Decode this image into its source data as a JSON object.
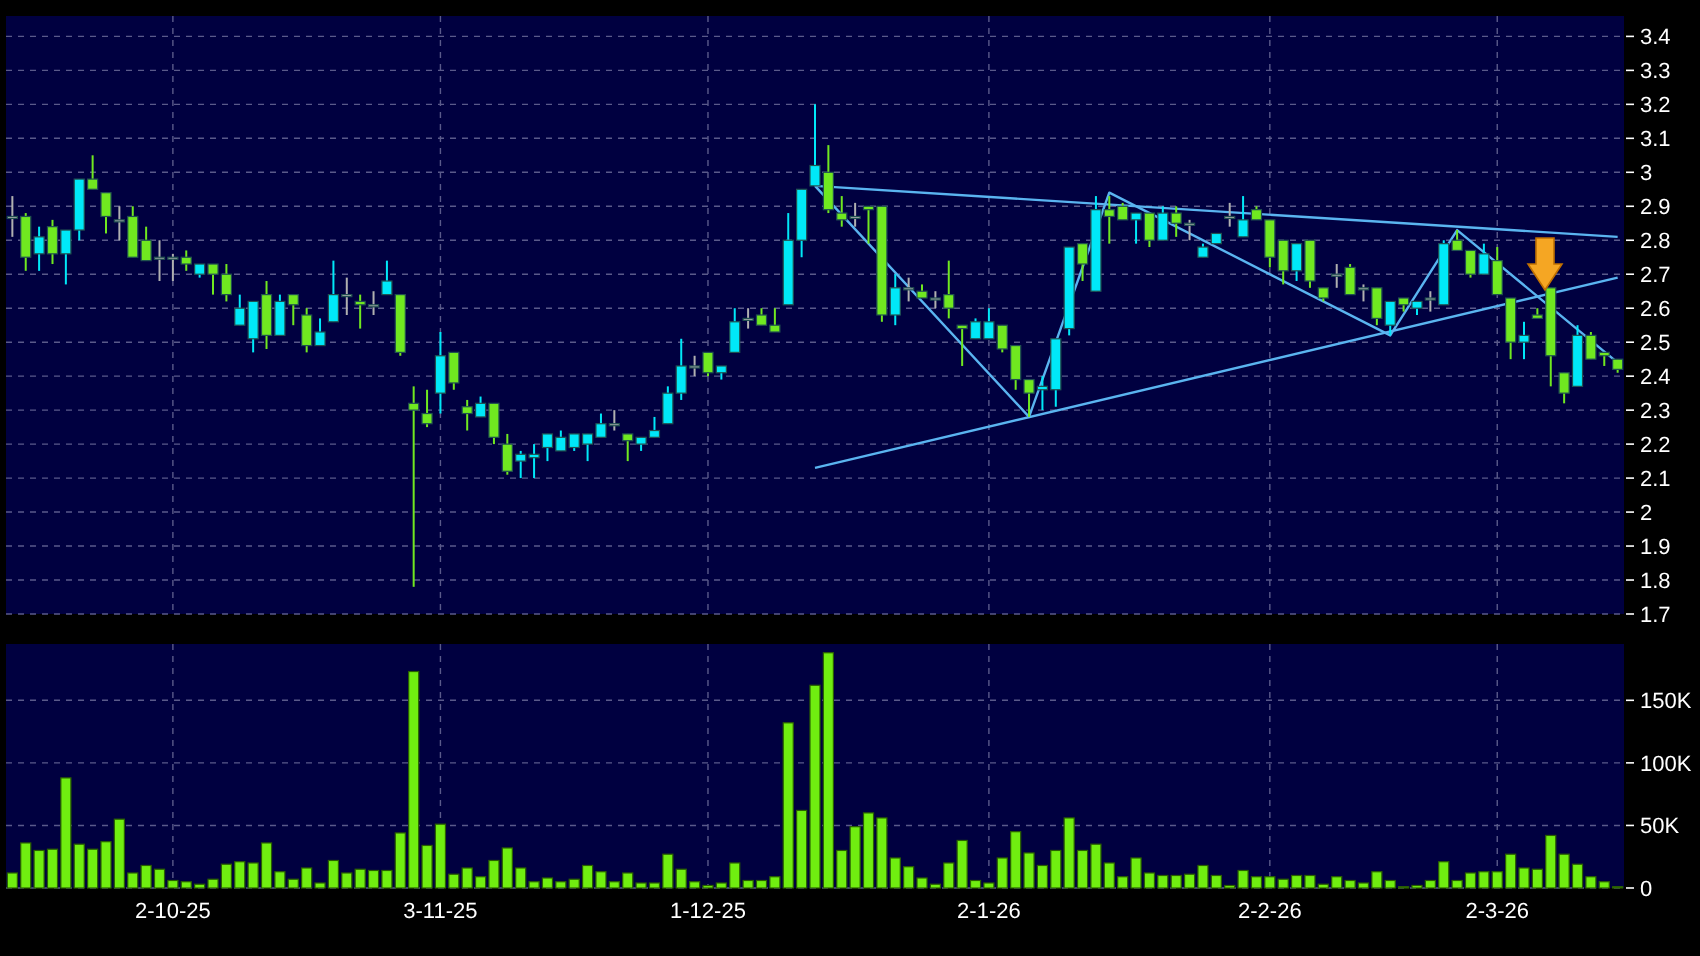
{
  "chart_data": [
    {
      "type": "candlestick",
      "categories": [
        null,
        null,
        null,
        null,
        null,
        null,
        null,
        null,
        null,
        null,
        null,
        null,
        null,
        null,
        null,
        null,
        null,
        null,
        null,
        null,
        null,
        null,
        null,
        null,
        null,
        null,
        null,
        null,
        null,
        null,
        null,
        null,
        null,
        null,
        null,
        null,
        null,
        null,
        null,
        null,
        null,
        null,
        null,
        null,
        null,
        null,
        null,
        null,
        null,
        null,
        null,
        null,
        null,
        null,
        null,
        null,
        null,
        null,
        null,
        null,
        null,
        null,
        null,
        null,
        null,
        null,
        null,
        null,
        null,
        null,
        null,
        null,
        null,
        null,
        null,
        null,
        null,
        null,
        null,
        null,
        null,
        null,
        null,
        null,
        null,
        null,
        null,
        null,
        null,
        null,
        null,
        null,
        null,
        null,
        null,
        null,
        null,
        null,
        null,
        null,
        null,
        null,
        null,
        null,
        null,
        null,
        null,
        null,
        null,
        null,
        null,
        null,
        null,
        null,
        null,
        null,
        null,
        null,
        null,
        null,
        null
      ],
      "ohlc": [
        [
          2.87,
          2.93,
          2.81,
          2.87
        ],
        [
          2.87,
          2.88,
          2.71,
          2.75
        ],
        [
          2.76,
          2.84,
          2.71,
          2.81
        ],
        [
          2.84,
          2.86,
          2.73,
          2.76
        ],
        [
          2.76,
          2.83,
          2.67,
          2.83
        ],
        [
          2.83,
          2.98,
          2.8,
          2.98
        ],
        [
          2.98,
          3.05,
          2.95,
          2.95
        ],
        [
          2.94,
          2.94,
          2.82,
          2.87
        ],
        [
          2.86,
          2.9,
          2.8,
          2.86
        ],
        [
          2.87,
          2.9,
          2.75,
          2.75
        ],
        [
          2.8,
          2.84,
          2.74,
          2.74
        ],
        [
          2.75,
          2.8,
          2.68,
          2.75
        ],
        [
          2.75,
          2.76,
          2.68,
          2.75
        ],
        [
          2.75,
          2.77,
          2.71,
          2.73
        ],
        [
          2.7,
          2.73,
          2.69,
          2.73
        ],
        [
          2.73,
          2.73,
          2.64,
          2.7
        ],
        [
          2.7,
          2.73,
          2.62,
          2.64
        ],
        [
          2.55,
          2.64,
          2.55,
          2.6
        ],
        [
          2.51,
          2.62,
          2.47,
          2.62
        ],
        [
          2.64,
          2.68,
          2.48,
          2.52
        ],
        [
          2.52,
          2.64,
          2.52,
          2.62
        ],
        [
          2.64,
          2.64,
          2.55,
          2.61
        ],
        [
          2.58,
          2.6,
          2.47,
          2.49
        ],
        [
          2.49,
          2.57,
          2.49,
          2.53
        ],
        [
          2.56,
          2.74,
          2.56,
          2.64
        ],
        [
          2.64,
          2.69,
          2.58,
          2.64
        ],
        [
          2.62,
          2.64,
          2.54,
          2.61
        ],
        [
          2.61,
          2.65,
          2.58,
          2.61
        ],
        [
          2.64,
          2.74,
          2.64,
          2.68
        ],
        [
          2.64,
          2.64,
          2.46,
          2.47
        ],
        [
          2.32,
          2.37,
          1.78,
          2.3
        ],
        [
          2.29,
          2.36,
          2.25,
          2.26
        ],
        [
          2.35,
          2.53,
          2.29,
          2.46
        ],
        [
          2.47,
          2.47,
          2.36,
          2.38
        ],
        [
          2.31,
          2.33,
          2.24,
          2.29
        ],
        [
          2.28,
          2.34,
          2.28,
          2.32
        ],
        [
          2.32,
          2.32,
          2.2,
          2.22
        ],
        [
          2.2,
          2.23,
          2.11,
          2.12
        ],
        [
          2.15,
          2.18,
          2.1,
          2.17
        ],
        [
          2.16,
          2.2,
          2.1,
          2.17
        ],
        [
          2.19,
          2.23,
          2.15,
          2.23
        ],
        [
          2.18,
          2.24,
          2.18,
          2.22
        ],
        [
          2.19,
          2.23,
          2.18,
          2.23
        ],
        [
          2.2,
          2.23,
          2.15,
          2.23
        ],
        [
          2.22,
          2.29,
          2.22,
          2.26
        ],
        [
          2.26,
          2.3,
          2.24,
          2.26
        ],
        [
          2.23,
          2.23,
          2.15,
          2.21
        ],
        [
          2.2,
          2.22,
          2.18,
          2.22
        ],
        [
          2.22,
          2.28,
          2.22,
          2.24
        ],
        [
          2.26,
          2.37,
          2.26,
          2.35
        ],
        [
          2.35,
          2.51,
          2.33,
          2.43
        ],
        [
          2.43,
          2.46,
          2.4,
          2.43
        ],
        [
          2.47,
          2.47,
          2.4,
          2.41
        ],
        [
          2.41,
          2.43,
          2.39,
          2.43
        ],
        [
          2.47,
          2.6,
          2.47,
          2.56
        ],
        [
          2.57,
          2.6,
          2.54,
          2.57
        ],
        [
          2.58,
          2.6,
          2.55,
          2.55
        ],
        [
          2.55,
          2.6,
          2.53,
          2.53
        ],
        [
          2.61,
          2.88,
          2.61,
          2.8
        ],
        [
          2.8,
          2.95,
          2.75,
          2.95
        ],
        [
          2.96,
          3.2,
          2.96,
          3.02
        ],
        [
          3,
          3.08,
          2.88,
          2.89
        ],
        [
          2.88,
          2.93,
          2.84,
          2.86
        ],
        [
          2.87,
          2.91,
          2.84,
          2.87
        ],
        [
          2.9,
          2.9,
          2.79,
          2.89
        ],
        [
          2.9,
          2.9,
          2.56,
          2.58
        ],
        [
          2.58,
          2.7,
          2.55,
          2.66
        ],
        [
          2.66,
          2.69,
          2.62,
          2.66
        ],
        [
          2.65,
          2.67,
          2.63,
          2.63
        ],
        [
          2.63,
          2.65,
          2.6,
          2.63
        ],
        [
          2.64,
          2.74,
          2.57,
          2.6
        ],
        [
          2.55,
          2.55,
          2.43,
          2.54
        ],
        [
          2.51,
          2.57,
          2.51,
          2.56
        ],
        [
          2.51,
          2.6,
          2.51,
          2.56
        ],
        [
          2.55,
          2.55,
          2.47,
          2.48
        ],
        [
          2.49,
          2.49,
          2.36,
          2.39
        ],
        [
          2.39,
          2.39,
          2.28,
          2.35
        ],
        [
          2.36,
          2.4,
          2.3,
          2.37
        ],
        [
          2.36,
          2.51,
          2.31,
          2.51
        ],
        [
          2.54,
          2.78,
          2.52,
          2.78
        ],
        [
          2.79,
          2.79,
          2.68,
          2.73
        ],
        [
          2.65,
          2.93,
          2.65,
          2.89
        ],
        [
          2.89,
          2.93,
          2.79,
          2.87
        ],
        [
          2.9,
          2.91,
          2.86,
          2.86
        ],
        [
          2.86,
          2.88,
          2.79,
          2.88
        ],
        [
          2.88,
          2.88,
          2.78,
          2.8
        ],
        [
          2.8,
          2.9,
          2.8,
          2.88
        ],
        [
          2.88,
          2.9,
          2.81,
          2.85
        ],
        [
          2.85,
          2.86,
          2.8,
          2.85
        ],
        [
          2.75,
          2.79,
          2.75,
          2.78
        ],
        [
          2.79,
          2.82,
          2.79,
          2.82
        ],
        [
          2.87,
          2.91,
          2.84,
          2.87
        ],
        [
          2.81,
          2.93,
          2.81,
          2.86
        ],
        [
          2.89,
          2.9,
          2.86,
          2.86
        ],
        [
          2.86,
          2.86,
          2.72,
          2.75
        ],
        [
          2.8,
          2.8,
          2.67,
          2.71
        ],
        [
          2.71,
          2.79,
          2.68,
          2.79
        ],
        [
          2.8,
          2.8,
          2.66,
          2.68
        ],
        [
          2.66,
          2.66,
          2.62,
          2.63
        ],
        [
          2.7,
          2.73,
          2.66,
          2.7
        ],
        [
          2.72,
          2.73,
          2.64,
          2.64
        ],
        [
          2.66,
          2.67,
          2.62,
          2.66
        ],
        [
          2.66,
          2.66,
          2.55,
          2.57
        ],
        [
          2.55,
          2.62,
          2.52,
          2.62
        ],
        [
          2.63,
          2.63,
          2.59,
          2.61
        ],
        [
          2.6,
          2.62,
          2.58,
          2.62
        ],
        [
          2.63,
          2.65,
          2.59,
          2.63
        ],
        [
          2.61,
          2.8,
          2.61,
          2.79
        ],
        [
          2.8,
          2.83,
          2.77,
          2.77
        ],
        [
          2.77,
          2.77,
          2.69,
          2.7
        ],
        [
          2.7,
          2.79,
          2.7,
          2.76
        ],
        [
          2.74,
          2.78,
          2.64,
          2.64
        ],
        [
          2.63,
          2.63,
          2.45,
          2.5
        ],
        [
          2.5,
          2.56,
          2.45,
          2.52
        ],
        [
          2.58,
          2.6,
          2.57,
          2.57
        ],
        [
          2.66,
          2.66,
          2.37,
          2.46
        ],
        [
          2.41,
          2.41,
          2.32,
          2.35
        ],
        [
          2.37,
          2.55,
          2.37,
          2.52
        ],
        [
          2.52,
          2.53,
          2.45,
          2.45
        ],
        [
          2.47,
          2.47,
          2.43,
          2.46
        ],
        [
          2.45,
          2.45,
          2.41,
          2.42
        ]
      ],
      "colors": [
        "#b0b0b0",
        "#70e820",
        "#00e8f8",
        "#70e820",
        "#00e8f8",
        "#00e8f8",
        "#70e820",
        "#70e820",
        "#b0b0b0",
        "#70e820",
        "#70e820",
        "#b0b0b0",
        "#b0b0b0",
        "#70e820",
        "#00e8f8",
        "#70e820",
        "#70e820",
        "#00e8f8",
        "#00e8f8",
        "#70e820",
        "#00e8f8",
        "#70e820",
        "#70e820",
        "#00e8f8",
        "#00e8f8",
        "#b0b0b0",
        "#70e820",
        "#b0b0b0",
        "#00e8f8",
        "#70e820",
        "#70e820",
        "#70e820",
        "#00e8f8",
        "#70e820",
        "#70e820",
        "#00e8f8",
        "#70e820",
        "#70e820",
        "#00e8f8",
        "#00e8f8",
        "#00e8f8",
        "#00e8f8",
        "#00e8f8",
        "#00e8f8",
        "#00e8f8",
        "#b0b0b0",
        "#70e820",
        "#00e8f8",
        "#00e8f8",
        "#00e8f8",
        "#00e8f8",
        "#b0b0b0",
        "#70e820",
        "#00e8f8",
        "#00e8f8",
        "#b0b0b0",
        "#70e820",
        "#70e820",
        "#00e8f8",
        "#00e8f8",
        "#00e8f8",
        "#70e820",
        "#70e820",
        "#b0b0b0",
        "#70e820",
        "#70e820",
        "#00e8f8",
        "#b0b0b0",
        "#70e820",
        "#b0b0b0",
        "#70e820",
        "#70e820",
        "#00e8f8",
        "#00e8f8",
        "#70e820",
        "#70e820",
        "#70e820",
        "#00e8f8",
        "#00e8f8",
        "#00e8f8",
        "#70e820",
        "#00e8f8",
        "#70e820",
        "#70e820",
        "#00e8f8",
        "#70e820",
        "#00e8f8",
        "#70e820",
        "#b0b0b0",
        "#00e8f8",
        "#00e8f8",
        "#b0b0b0",
        "#00e8f8",
        "#70e820",
        "#70e820",
        "#70e820",
        "#00e8f8",
        "#70e820",
        "#70e820",
        "#b0b0b0",
        "#70e820",
        "#b0b0b0",
        "#70e820",
        "#00e8f8",
        "#70e820",
        "#00e8f8",
        "#b0b0b0",
        "#00e8f8",
        "#70e820",
        "#70e820",
        "#00e8f8",
        "#70e820",
        "#70e820",
        "#00e8f8",
        "#70e820",
        "#70e820",
        "#70e820",
        "#00e8f8",
        "#70e820",
        "#70e820",
        "#70e820"
      ],
      "series": [
        {
          "type": "line",
          "color": "#5ab4f0",
          "values": [
            null,
            null,
            null,
            null,
            null,
            null,
            null,
            null,
            null,
            null,
            null,
            null,
            null,
            null,
            null,
            null,
            null,
            null,
            null,
            null,
            null,
            null,
            null,
            null,
            null,
            null,
            null,
            null,
            null,
            null,
            null,
            null,
            null,
            null,
            null,
            null,
            null,
            null,
            null,
            null,
            null,
            null,
            null,
            null,
            null,
            null,
            null,
            null,
            null,
            null,
            null,
            null,
            null,
            null,
            null,
            null,
            null,
            null,
            null,
            null,
            2.96,
            null,
            null,
            null,
            null,
            null,
            null,
            null,
            null,
            null,
            null,
            null,
            null,
            null,
            null,
            null,
            null,
            null,
            null,
            null,
            null,
            null,
            null,
            null,
            null,
            null,
            null,
            null,
            null,
            null,
            null,
            null,
            null,
            null,
            null,
            null,
            null,
            null,
            null,
            null,
            null,
            null,
            null,
            null,
            null,
            null,
            null,
            null,
            null,
            null,
            null,
            null,
            null,
            null,
            null,
            null,
            null,
            null,
            null,
            null,
            2.81
          ]
        },
        {
          "type": "line",
          "color": "#5ab4f0",
          "values": [
            null,
            null,
            null,
            null,
            null,
            null,
            null,
            null,
            null,
            null,
            null,
            null,
            null,
            null,
            null,
            null,
            null,
            null,
            null,
            null,
            null,
            null,
            null,
            null,
            null,
            null,
            null,
            null,
            null,
            null,
            null,
            null,
            null,
            null,
            null,
            null,
            null,
            null,
            null,
            null,
            null,
            null,
            null,
            null,
            null,
            null,
            null,
            null,
            null,
            null,
            null,
            null,
            null,
            null,
            null,
            null,
            null,
            null,
            null,
            null,
            2.13,
            null,
            null,
            null,
            null,
            null,
            null,
            null,
            null,
            null,
            null,
            null,
            null,
            null,
            null,
            null,
            null,
            null,
            null,
            null,
            null,
            null,
            null,
            null,
            null,
            null,
            null,
            null,
            null,
            null,
            null,
            null,
            null,
            null,
            null,
            null,
            null,
            null,
            null,
            null,
            null,
            null,
            null,
            null,
            null,
            null,
            null,
            null,
            null,
            null,
            null,
            null,
            null,
            null,
            null,
            null,
            null,
            null,
            null,
            null,
            2.69
          ]
        },
        {
          "type": "line",
          "color": "#5ab4f0",
          "values": [
            null,
            null,
            null,
            null,
            null,
            null,
            null,
            null,
            null,
            null,
            null,
            null,
            null,
            null,
            null,
            null,
            null,
            null,
            null,
            null,
            null,
            null,
            null,
            null,
            null,
            null,
            null,
            null,
            null,
            null,
            null,
            null,
            null,
            null,
            null,
            null,
            null,
            null,
            null,
            null,
            null,
            null,
            null,
            null,
            null,
            null,
            null,
            null,
            null,
            null,
            null,
            null,
            null,
            null,
            null,
            null,
            null,
            null,
            null,
            null,
            2.96,
            null,
            null,
            null,
            null,
            null,
            null,
            null,
            null,
            null,
            null,
            null,
            null,
            null,
            null,
            null,
            2.28,
            null,
            null,
            null,
            null,
            null,
            2.94,
            null,
            null,
            null,
            null,
            null,
            null,
            null,
            null,
            null,
            null,
            null,
            null,
            null,
            null,
            null,
            null,
            null,
            null,
            null,
            null,
            2.52,
            null,
            null,
            null,
            null,
            2.83,
            null,
            null,
            null,
            null,
            null,
            null,
            null,
            null,
            null,
            null,
            null,
            2.44
          ]
        }
      ],
      "ylim": [
        1.7,
        3.46
      ],
      "yticks": [
        1.7,
        1.8,
        1.9,
        2,
        2.1,
        2.2,
        2.3,
        2.4,
        2.5,
        2.6,
        2.7,
        2.8,
        2.9,
        3,
        3.1,
        3.2,
        3.3,
        3.4
      ],
      "grid": true,
      "tick_labels": "y"
    },
    {
      "type": "bar",
      "categories": [
        null,
        null,
        null,
        null,
        null,
        null,
        null,
        null,
        null,
        null,
        null,
        null,
        "2-10-25",
        null,
        null,
        null,
        null,
        null,
        null,
        null,
        null,
        null,
        null,
        null,
        null,
        null,
        null,
        null,
        null,
        null,
        null,
        null,
        "3-11-25",
        null,
        null,
        null,
        null,
        null,
        null,
        null,
        null,
        null,
        null,
        null,
        null,
        null,
        null,
        null,
        null,
        null,
        null,
        null,
        "1-12-25",
        null,
        null,
        null,
        null,
        null,
        null,
        null,
        null,
        null,
        null,
        null,
        null,
        null,
        null,
        null,
        null,
        null,
        null,
        null,
        null,
        "2-1-26",
        null,
        null,
        null,
        null,
        null,
        null,
        null,
        null,
        null,
        null,
        null,
        null,
        null,
        null,
        null,
        null,
        null,
        null,
        null,
        null,
        "2-2-26",
        null,
        null,
        null,
        null,
        null,
        null,
        null,
        null,
        null,
        null,
        null,
        null,
        null,
        null,
        null,
        null,
        "2-3-26",
        null,
        null,
        null,
        null,
        null,
        null,
        null,
        null,
        null
      ],
      "color": "#70ee10",
      "values": [
        12000,
        36000,
        30000,
        31000,
        88000,
        35000,
        31000,
        37000,
        55000,
        12000,
        18000,
        15000,
        6000,
        5000,
        3000,
        7000,
        19000,
        21000,
        20000,
        36000,
        13000,
        7000,
        16000,
        4000,
        22000,
        12000,
        15000,
        14000,
        14000,
        44000,
        173000,
        34000,
        51000,
        11000,
        16000,
        9000,
        22000,
        32000,
        16000,
        5000,
        8000,
        5000,
        7000,
        18000,
        13000,
        5000,
        12000,
        4000,
        4000,
        27000,
        15000,
        5000,
        2000,
        4000,
        20000,
        6000,
        6000,
        9000,
        132000,
        62000,
        162000,
        188000,
        30000,
        49000,
        60000,
        56000,
        24000,
        17000,
        8000,
        3000,
        20000,
        38000,
        6000,
        4000,
        24000,
        45000,
        28000,
        18000,
        30000,
        56000,
        30000,
        35000,
        20000,
        9000,
        24000,
        12000,
        10000,
        10000,
        11000,
        18000,
        10000,
        2000,
        14000,
        9000,
        9000,
        7000,
        10000,
        10000,
        3000,
        9000,
        6000,
        4000,
        13000,
        6000,
        1000,
        2000,
        6000,
        21000,
        6000,
        12000,
        13000,
        13000,
        27000,
        16000,
        15000,
        42000,
        27000,
        19000,
        9000,
        5000,
        1000
      ],
      "ylim": [
        0,
        195000
      ],
      "yticks": [
        0,
        {
          "value": 50000,
          "label": "50K"
        },
        {
          "value": 100000,
          "label": "100K"
        },
        {
          "value": 150000,
          "label": "150K"
        }
      ],
      "grid": true
    }
  ]
}
